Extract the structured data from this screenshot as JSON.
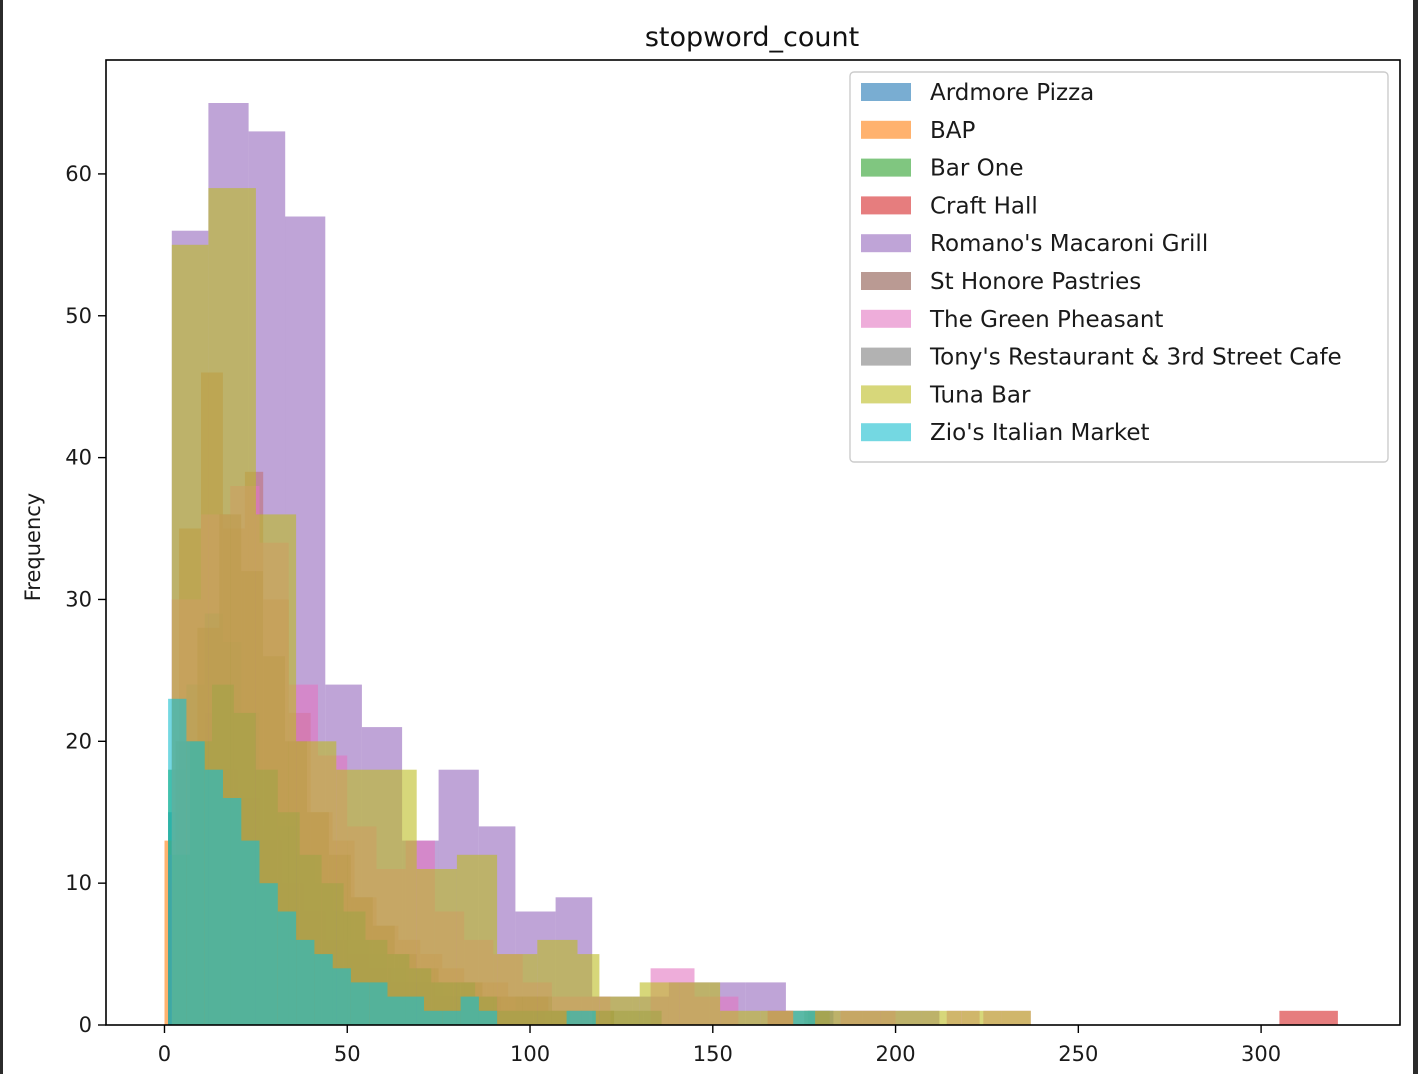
{
  "chart_data": {
    "type": "bar",
    "title": "stopword_count",
    "xlabel": "",
    "ylabel": "Frequency",
    "xlim": [
      -16,
      338
    ],
    "ylim": [
      0,
      65
    ],
    "xticks": [
      0,
      50,
      100,
      150,
      200,
      250,
      300
    ],
    "yticks": [
      0,
      10,
      20,
      30,
      40,
      50,
      60
    ],
    "grid": false,
    "legend_position": "upper-right",
    "series": [
      {
        "name": "Ardmore Pizza",
        "color": "#1f77b4",
        "bins": [
          [
            1,
            6,
            15
          ],
          [
            6,
            11,
            20
          ],
          [
            11,
            16,
            22
          ],
          [
            16,
            21,
            21
          ],
          [
            21,
            26,
            18
          ],
          [
            26,
            31,
            14
          ],
          [
            31,
            36,
            10
          ],
          [
            36,
            41,
            8
          ],
          [
            41,
            46,
            6
          ],
          [
            46,
            51,
            5
          ],
          [
            51,
            56,
            4
          ],
          [
            56,
            61,
            3
          ],
          [
            61,
            66,
            3
          ],
          [
            66,
            71,
            2
          ],
          [
            71,
            76,
            2
          ],
          [
            76,
            81,
            2
          ],
          [
            81,
            91,
            1
          ],
          [
            91,
            101,
            1
          ],
          [
            101,
            111,
            1
          ],
          [
            176,
            183,
            1
          ]
        ]
      },
      {
        "name": "BAP",
        "color": "#ff7f0e",
        "bins": [
          [
            0,
            4,
            13
          ],
          [
            4,
            10,
            35
          ],
          [
            10,
            16,
            46
          ],
          [
            16,
            22,
            35
          ],
          [
            22,
            27,
            39
          ],
          [
            27,
            34,
            30
          ],
          [
            34,
            40,
            22
          ],
          [
            40,
            46,
            15
          ],
          [
            46,
            52,
            13
          ],
          [
            52,
            58,
            9
          ],
          [
            58,
            64,
            7
          ],
          [
            64,
            70,
            6
          ],
          [
            70,
            76,
            5
          ],
          [
            76,
            82,
            4
          ],
          [
            82,
            88,
            3
          ],
          [
            88,
            94,
            3
          ],
          [
            94,
            100,
            2
          ],
          [
            100,
            106,
            2
          ],
          [
            106,
            112,
            1
          ],
          [
            112,
            118,
            1
          ]
        ]
      },
      {
        "name": "Bar One",
        "color": "#2ca02c",
        "bins": [
          [
            1,
            6,
            18
          ],
          [
            6,
            11,
            24
          ],
          [
            11,
            16,
            29
          ],
          [
            16,
            21,
            27
          ],
          [
            21,
            26,
            22
          ],
          [
            26,
            31,
            18
          ],
          [
            31,
            36,
            14
          ],
          [
            36,
            41,
            12
          ],
          [
            41,
            46,
            10
          ],
          [
            46,
            51,
            8
          ],
          [
            51,
            56,
            6
          ],
          [
            56,
            61,
            5
          ],
          [
            61,
            66,
            4
          ],
          [
            66,
            71,
            3
          ],
          [
            71,
            76,
            3
          ],
          [
            76,
            81,
            2
          ],
          [
            81,
            86,
            2
          ],
          [
            86,
            96,
            1
          ],
          [
            96,
            106,
            2
          ],
          [
            111,
            116,
            1
          ]
        ]
      },
      {
        "name": "Craft Hall",
        "color": "#d62728",
        "bins": [
          [
            2,
            8,
            10
          ],
          [
            8,
            14,
            14
          ],
          [
            14,
            20,
            18
          ],
          [
            20,
            26,
            16
          ],
          [
            26,
            32,
            13
          ],
          [
            32,
            38,
            10
          ],
          [
            38,
            44,
            8
          ],
          [
            44,
            50,
            6
          ],
          [
            50,
            56,
            5
          ],
          [
            56,
            62,
            4
          ],
          [
            62,
            68,
            3
          ],
          [
            68,
            74,
            3
          ],
          [
            74,
            80,
            2
          ],
          [
            80,
            86,
            2
          ],
          [
            86,
            92,
            2
          ],
          [
            92,
            98,
            1
          ],
          [
            98,
            104,
            1
          ],
          [
            165,
            172,
            1
          ],
          [
            305,
            321,
            1
          ]
        ]
      },
      {
        "name": "Romano's Macaroni Grill",
        "color": "#9467bd",
        "bins": [
          [
            2,
            12,
            56
          ],
          [
            12,
            23,
            65
          ],
          [
            23,
            33,
            63
          ],
          [
            33,
            44,
            57
          ],
          [
            44,
            54,
            24
          ],
          [
            54,
            65,
            21
          ],
          [
            65,
            75,
            13
          ],
          [
            75,
            86,
            18
          ],
          [
            86,
            96,
            14
          ],
          [
            96,
            107,
            8
          ],
          [
            107,
            117,
            9
          ],
          [
            117,
            128,
            2
          ],
          [
            128,
            138,
            2
          ],
          [
            138,
            149,
            3
          ],
          [
            149,
            159,
            3
          ],
          [
            159,
            170,
            3
          ],
          [
            170,
            180,
            1
          ],
          [
            180,
            191,
            1
          ],
          [
            191,
            201,
            1
          ],
          [
            201,
            212,
            1
          ]
        ]
      },
      {
        "name": "St Honore Pastries",
        "color": "#8c564b",
        "bins": [
          [
            3,
            9,
            20
          ],
          [
            9,
            15,
            28
          ],
          [
            15,
            21,
            36
          ],
          [
            21,
            27,
            32
          ],
          [
            27,
            33,
            26
          ],
          [
            33,
            39,
            20
          ],
          [
            39,
            45,
            15
          ],
          [
            45,
            51,
            12
          ],
          [
            51,
            57,
            9
          ],
          [
            57,
            63,
            7
          ],
          [
            63,
            69,
            5
          ],
          [
            69,
            75,
            4
          ],
          [
            75,
            81,
            3
          ],
          [
            81,
            87,
            3
          ],
          [
            87,
            93,
            2
          ],
          [
            93,
            99,
            2
          ],
          [
            99,
            105,
            2
          ],
          [
            105,
            111,
            1
          ],
          [
            111,
            117,
            1
          ],
          [
            117,
            123,
            1
          ]
        ]
      },
      {
        "name": "The Green Pheasant",
        "color": "#e377c2",
        "bins": [
          [
            2,
            10,
            30
          ],
          [
            10,
            18,
            36
          ],
          [
            18,
            26,
            38
          ],
          [
            26,
            34,
            34
          ],
          [
            34,
            42,
            24
          ],
          [
            42,
            50,
            19
          ],
          [
            50,
            58,
            14
          ],
          [
            58,
            66,
            11
          ],
          [
            66,
            74,
            13
          ],
          [
            74,
            82,
            8
          ],
          [
            82,
            90,
            6
          ],
          [
            90,
            98,
            5
          ],
          [
            98,
            106,
            3
          ],
          [
            106,
            114,
            2
          ],
          [
            114,
            122,
            2
          ],
          [
            133,
            145,
            4
          ],
          [
            145,
            157,
            2
          ],
          [
            165,
            172,
            1
          ],
          [
            185,
            200,
            1
          ],
          [
            214,
            223,
            1
          ],
          [
            224,
            237,
            1
          ]
        ]
      },
      {
        "name": "Tony's Restaurant & 3rd Street Cafe",
        "color": "#7f7f7f",
        "bins": [
          [
            1,
            7,
            12
          ],
          [
            7,
            13,
            20
          ],
          [
            13,
            19,
            24
          ],
          [
            19,
            25,
            22
          ],
          [
            25,
            31,
            18
          ],
          [
            31,
            37,
            15
          ],
          [
            37,
            43,
            12
          ],
          [
            43,
            49,
            10
          ],
          [
            49,
            55,
            8
          ],
          [
            55,
            61,
            6
          ],
          [
            61,
            67,
            5
          ],
          [
            67,
            73,
            4
          ],
          [
            73,
            79,
            3
          ],
          [
            79,
            85,
            3
          ],
          [
            85,
            91,
            2
          ],
          [
            91,
            101,
            1
          ],
          [
            101,
            111,
            1
          ],
          [
            117,
            127,
            1
          ],
          [
            127,
            131,
            1
          ],
          [
            131,
            136,
            1
          ],
          [
            175,
            182,
            1
          ]
        ]
      },
      {
        "name": "Tuna Bar",
        "color": "#bcbd22",
        "bins": [
          [
            2,
            12,
            55
          ],
          [
            12,
            25,
            59
          ],
          [
            25,
            36,
            36
          ],
          [
            36,
            47,
            20
          ],
          [
            47,
            58,
            18
          ],
          [
            58,
            69,
            18
          ],
          [
            69,
            80,
            11
          ],
          [
            80,
            91,
            12
          ],
          [
            91,
            102,
            5
          ],
          [
            102,
            113,
            6
          ],
          [
            113,
            119,
            5
          ],
          [
            119,
            130,
            2
          ],
          [
            130,
            141,
            3
          ],
          [
            141,
            152,
            3
          ],
          [
            152,
            163,
            1
          ],
          [
            163,
            174,
            1
          ],
          [
            174,
            185,
            1
          ],
          [
            185,
            196,
            1
          ],
          [
            196,
            207,
            1
          ],
          [
            207,
            218,
            1
          ],
          [
            218,
            229,
            1
          ],
          [
            229,
            237,
            1
          ]
        ]
      },
      {
        "name": "Zio's Italian Market",
        "color": "#17becf",
        "bins": [
          [
            1,
            6,
            23
          ],
          [
            6,
            11,
            20
          ],
          [
            11,
            16,
            18
          ],
          [
            16,
            21,
            16
          ],
          [
            21,
            26,
            13
          ],
          [
            26,
            31,
            10
          ],
          [
            31,
            36,
            8
          ],
          [
            36,
            41,
            6
          ],
          [
            41,
            46,
            5
          ],
          [
            46,
            51,
            4
          ],
          [
            51,
            56,
            3
          ],
          [
            56,
            61,
            3
          ],
          [
            61,
            66,
            2
          ],
          [
            66,
            71,
            2
          ],
          [
            71,
            76,
            1
          ],
          [
            76,
            81,
            1
          ],
          [
            81,
            86,
            2
          ],
          [
            86,
            91,
            1
          ],
          [
            110,
            118,
            1
          ],
          [
            172,
            178,
            1
          ]
        ]
      }
    ]
  }
}
